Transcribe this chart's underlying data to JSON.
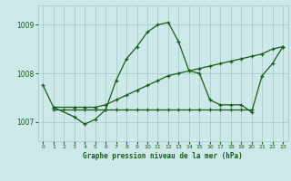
{
  "background_color": "#cce8e8",
  "grid_color": "#aacccc",
  "line_color": "#1a5c1a",
  "title": "Graphe pression niveau de la mer (hPa)",
  "xlim": [
    -0.5,
    23.5
  ],
  "ylim": [
    1006.6,
    1009.4
  ],
  "yticks": [
    1007,
    1008,
    1009
  ],
  "xticks": [
    0,
    1,
    2,
    3,
    4,
    5,
    6,
    7,
    8,
    9,
    10,
    11,
    12,
    13,
    14,
    15,
    16,
    17,
    18,
    19,
    20,
    21,
    22,
    23
  ],
  "series": [
    {
      "x": [
        0,
        1,
        3,
        4,
        5,
        6,
        7,
        8,
        9,
        10,
        11,
        12,
        13,
        14,
        15,
        16,
        17,
        18,
        19,
        20,
        21,
        22,
        23
      ],
      "y": [
        1007.75,
        1007.3,
        1007.1,
        1006.95,
        1007.05,
        1007.25,
        1007.85,
        1008.3,
        1008.55,
        1008.85,
        1009.0,
        1009.05,
        1008.65,
        1008.05,
        1008.0,
        1007.45,
        1007.35,
        1007.35,
        1007.35,
        1007.2,
        1007.95,
        1008.2,
        1008.55
      ]
    },
    {
      "x": [
        1,
        2,
        3,
        4,
        5,
        6,
        7,
        8,
        9,
        10,
        11,
        12,
        13,
        14,
        15,
        16,
        17,
        18,
        19,
        20
      ],
      "y": [
        1007.25,
        1007.25,
        1007.25,
        1007.25,
        1007.25,
        1007.25,
        1007.25,
        1007.25,
        1007.25,
        1007.25,
        1007.25,
        1007.25,
        1007.25,
        1007.25,
        1007.25,
        1007.25,
        1007.25,
        1007.25,
        1007.25,
        1007.25
      ]
    },
    {
      "x": [
        1,
        3,
        4,
        5,
        6,
        7,
        8,
        9,
        10,
        11,
        12,
        13,
        14,
        15,
        16,
        17,
        18,
        19,
        20,
        21,
        22,
        23
      ],
      "y": [
        1007.3,
        1007.3,
        1007.3,
        1007.3,
        1007.35,
        1007.45,
        1007.55,
        1007.65,
        1007.75,
        1007.85,
        1007.95,
        1008.0,
        1008.05,
        1008.1,
        1008.15,
        1008.2,
        1008.25,
        1008.3,
        1008.35,
        1008.4,
        1008.5,
        1008.55
      ]
    }
  ]
}
